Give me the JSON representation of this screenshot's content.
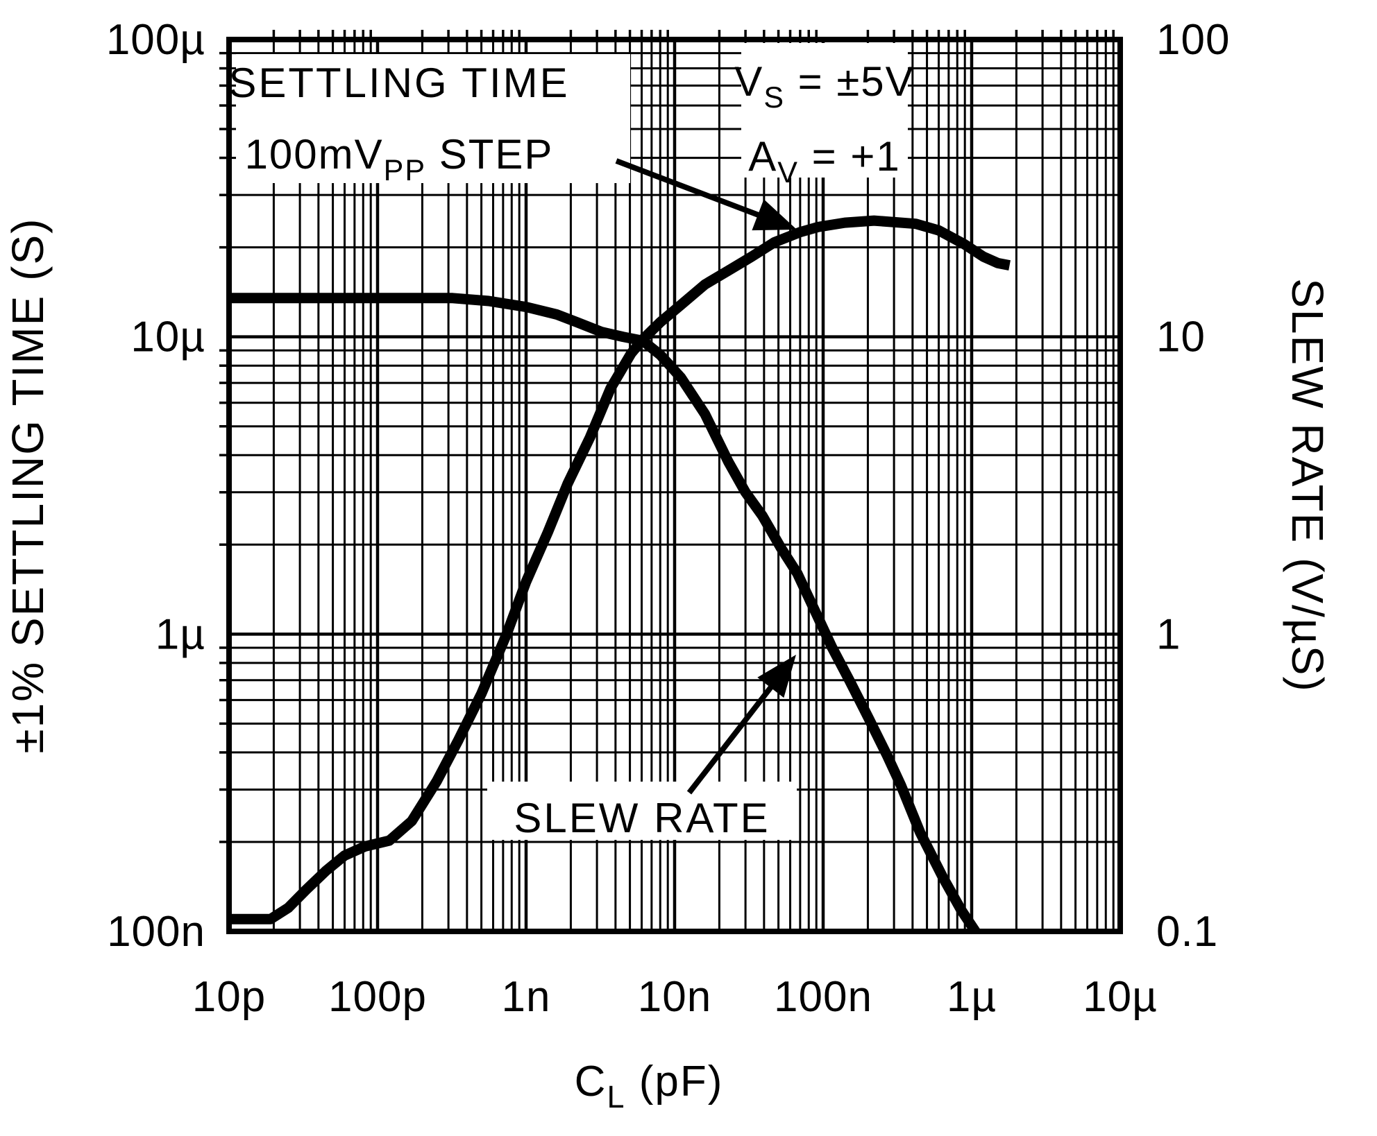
{
  "figure": {
    "background_color": "#ffffff",
    "ink_color": "#000000"
  },
  "chart_data": {
    "type": "line",
    "grid": "log-log full minor grid",
    "legend_position": "in-plot text labels with arrows",
    "x_axis": {
      "title_pre": "C",
      "title_sub": "L",
      "title_post": " (pF)",
      "scale": "log",
      "min_pF": 10,
      "max_pF": 10000000,
      "tick_labels": [
        "10p",
        "100p",
        "1n",
        "10n",
        "100n",
        "1µ",
        "10µ"
      ]
    },
    "y_axis_left": {
      "title": "±1% SETTLING TIME (S)",
      "scale": "log",
      "min_s": 1e-07,
      "max_s": 0.0001,
      "tick_labels": [
        "100µ",
        "10µ",
        "1µ",
        "100n"
      ]
    },
    "y_axis_right": {
      "title": "SLEW RATE (V/µS)",
      "scale": "log",
      "min": 0.1,
      "max": 100,
      "tick_labels": [
        "100",
        "10",
        "1",
        "0.1"
      ]
    },
    "conditions": [
      {
        "pre": "V",
        "sub": "S",
        "post": " = ±5V"
      },
      {
        "pre": "A",
        "sub": "V",
        "post": " = +1"
      }
    ],
    "series": [
      {
        "name": "SETTLING TIME",
        "axis": "left",
        "label_line1": "SETTLING TIME",
        "label_line2_pre": "100mV",
        "label_line2_sub": "PP",
        "label_line2_post": " STEP",
        "points_pF_s": [
          [
            10,
            1.1e-07
          ],
          [
            19,
            1.1e-07
          ],
          [
            25,
            1.2e-07
          ],
          [
            33,
            1.38e-07
          ],
          [
            45,
            1.6e-07
          ],
          [
            60,
            1.8e-07
          ],
          [
            82,
            1.93e-07
          ],
          [
            120,
            2.02e-07
          ],
          [
            170,
            2.35e-07
          ],
          [
            250,
            3.2e-07
          ],
          [
            350,
            4.4e-07
          ],
          [
            500,
            6.3e-07
          ],
          [
            740,
            1e-06
          ],
          [
            1000,
            1.5e-06
          ],
          [
            1400,
            2.2e-06
          ],
          [
            1900,
            3.2e-06
          ],
          [
            2700,
            4.6e-06
          ],
          [
            3700,
            6.7e-06
          ],
          [
            5100,
            8.8e-06
          ],
          [
            6100,
            9.8e-06
          ],
          [
            8000,
            1.12e-05
          ],
          [
            11000,
            1.28e-05
          ],
          [
            16000,
            1.5e-05
          ],
          [
            23000,
            1.67e-05
          ],
          [
            33000,
            1.86e-05
          ],
          [
            47000,
            2.08e-05
          ],
          [
            70000,
            2.25e-05
          ],
          [
            92000,
            2.34e-05
          ],
          [
            140000,
            2.42e-05
          ],
          [
            220000,
            2.46e-05
          ],
          [
            420000,
            2.4e-05
          ],
          [
            600000,
            2.28e-05
          ],
          [
            890000,
            2.05e-05
          ],
          [
            1200000,
            1.86e-05
          ],
          [
            1500000,
            1.77e-05
          ],
          [
            1800000,
            1.74e-05
          ]
        ]
      },
      {
        "name": "SLEW RATE",
        "axis": "right",
        "label": "SLEW RATE",
        "points_pF_Vus": [
          [
            10,
            13.5
          ],
          [
            100,
            13.5
          ],
          [
            320,
            13.5
          ],
          [
            560,
            13.2
          ],
          [
            1000,
            12.6
          ],
          [
            1600,
            11.9
          ],
          [
            2200,
            11.2
          ],
          [
            3200,
            10.4
          ],
          [
            4500,
            10.0
          ],
          [
            6100,
            9.7
          ],
          [
            8000,
            8.7
          ],
          [
            11000,
            7.3
          ],
          [
            16000,
            5.5
          ],
          [
            23000,
            3.8
          ],
          [
            30000,
            3.0
          ],
          [
            39000,
            2.5
          ],
          [
            52000,
            1.95
          ],
          [
            67000,
            1.6
          ],
          [
            90000,
            1.17
          ],
          [
            115000,
            0.9
          ],
          [
            150000,
            0.7
          ],
          [
            203000,
            0.52
          ],
          [
            270000,
            0.39
          ],
          [
            334000,
            0.31
          ],
          [
            450000,
            0.215
          ],
          [
            640000,
            0.152
          ],
          [
            850000,
            0.118
          ],
          [
            1060000,
            0.1
          ]
        ]
      }
    ]
  }
}
